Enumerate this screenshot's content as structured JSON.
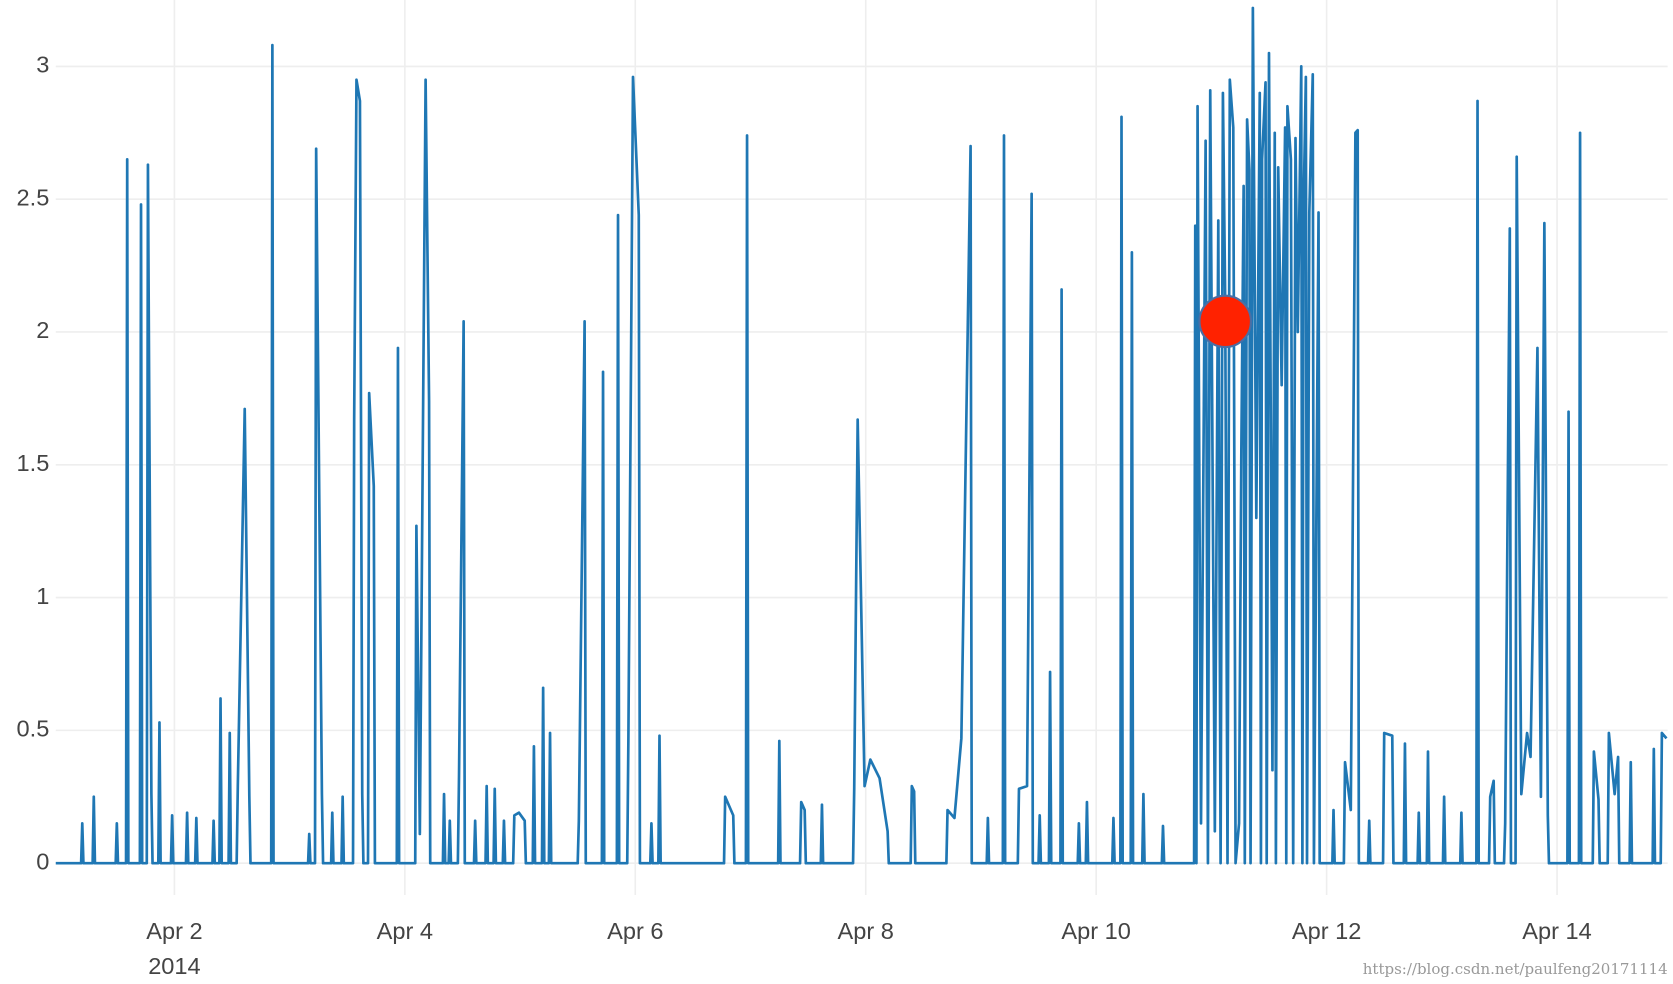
{
  "chart_data": {
    "type": "line",
    "color": "#1f77b4",
    "x": [
      0.97,
      1.19,
      1.2,
      1.21,
      1.29,
      1.3,
      1.31,
      1.49,
      1.5,
      1.51,
      1.58,
      1.59,
      1.6,
      1.7,
      1.71,
      1.72,
      1.76,
      1.77,
      1.8,
      1.81,
      1.86,
      1.87,
      1.88,
      1.97,
      1.98,
      1.99,
      2.1,
      2.11,
      2.12,
      2.18,
      2.19,
      2.2,
      2.33,
      2.34,
      2.35,
      2.39,
      2.4,
      2.41,
      2.47,
      2.48,
      2.49,
      2.54,
      2.55,
      2.61,
      2.65,
      2.66,
      2.84,
      2.85,
      2.86,
      3.16,
      3.17,
      3.18,
      3.22,
      3.23,
      3.28,
      3.29,
      3.36,
      3.37,
      3.38,
      3.45,
      3.46,
      3.47,
      3.55,
      3.56,
      3.58,
      3.61,
      3.63,
      3.64,
      3.68,
      3.69,
      3.73,
      3.74,
      3.93,
      3.94,
      3.95,
      4.09,
      4.1,
      4.13,
      4.18,
      4.21,
      4.22,
      4.33,
      4.34,
      4.35,
      4.38,
      4.39,
      4.4,
      4.46,
      4.47,
      4.51,
      4.52,
      4.6,
      4.61,
      4.62,
      4.7,
      4.71,
      4.72,
      4.77,
      4.78,
      4.79,
      4.85,
      4.86,
      4.87,
      4.94,
      4.95,
      4.99,
      5.04,
      5.05,
      5.11,
      5.12,
      5.13,
      5.19,
      5.2,
      5.21,
      5.25,
      5.26,
      5.27,
      5.5,
      5.51,
      5.56,
      5.57,
      5.71,
      5.72,
      5.73,
      5.84,
      5.85,
      5.86,
      5.93,
      5.94,
      5.98,
      6.03,
      6.04,
      6.13,
      6.14,
      6.15,
      6.2,
      6.21,
      6.22,
      6.77,
      6.78,
      6.85,
      6.86,
      6.96,
      6.97,
      6.98,
      7.24,
      7.25,
      7.26,
      7.43,
      7.44,
      7.47,
      7.48,
      7.61,
      7.62,
      7.63,
      7.89,
      7.9,
      7.93,
      7.99,
      8.04,
      8.12,
      8.19,
      8.2,
      8.39,
      8.4,
      8.42,
      8.43,
      8.7,
      8.71,
      8.77,
      8.83,
      8.91,
      8.92,
      9.05,
      9.06,
      9.07,
      9.19,
      9.2,
      9.21,
      9.32,
      9.33,
      9.4,
      9.44,
      9.45,
      9.5,
      9.51,
      9.52,
      9.59,
      9.6,
      9.61,
      9.69,
      9.7,
      9.71,
      9.84,
      9.85,
      9.86,
      9.91,
      9.92,
      9.93,
      10.14,
      10.15,
      10.16,
      10.21,
      10.22,
      10.23,
      10.3,
      10.31,
      10.32,
      10.4,
      10.41,
      10.42,
      10.57,
      10.58,
      10.59,
      10.85,
      10.86,
      10.87,
      10.88,
      10.91,
      10.95,
      10.97,
      10.99,
      11.03,
      11.06,
      11.08,
      11.1,
      11.12,
      11.14,
      11.16,
      11.19,
      11.21,
      11.24,
      11.26,
      11.28,
      11.29,
      11.31,
      11.33,
      11.34,
      11.36,
      11.39,
      11.42,
      11.43,
      11.44,
      11.47,
      11.48,
      11.5,
      11.53,
      11.55,
      11.56,
      11.58,
      11.61,
      11.64,
      11.65,
      11.66,
      11.69,
      11.71,
      11.73,
      11.75,
      11.78,
      11.79,
      11.8,
      11.82,
      11.83,
      11.85,
      11.88,
      11.89,
      11.93,
      11.94,
      12.05,
      12.06,
      12.07,
      12.15,
      12.16,
      12.21,
      12.25,
      12.27,
      12.28,
      12.36,
      12.37,
      12.38,
      12.49,
      12.5,
      12.57,
      12.58,
      12.67,
      12.68,
      12.69,
      12.79,
      12.8,
      12.81,
      12.87,
      12.88,
      12.89,
      13.01,
      13.02,
      13.03,
      13.16,
      13.17,
      13.18,
      13.3,
      13.31,
      13.32,
      13.41,
      13.42,
      13.45,
      13.46,
      13.54,
      13.55,
      13.59,
      13.6,
      13.64,
      13.65,
      13.69,
      13.74,
      13.77,
      13.83,
      13.86,
      13.89,
      13.92,
      13.93,
      14.09,
      14.1,
      14.11,
      14.19,
      14.2,
      14.21,
      14.31,
      14.32,
      14.36,
      14.37,
      14.44,
      14.45,
      14.5,
      14.53,
      14.54,
      14.63,
      14.64,
      14.65,
      14.83,
      14.84,
      14.85,
      14.9,
      14.91,
      14.95
    ],
    "values": [
      0,
      0,
      0.15,
      0,
      0,
      0.25,
      0,
      0,
      0.15,
      0,
      0,
      2.65,
      0,
      0,
      2.48,
      0,
      0,
      2.63,
      0.26,
      0,
      0,
      0.53,
      0,
      0,
      0.18,
      0,
      0,
      0.19,
      0,
      0,
      0.17,
      0,
      0,
      0.16,
      0,
      0,
      0.62,
      0,
      0,
      0.49,
      0,
      0,
      0.29,
      1.71,
      0.25,
      0,
      0,
      3.08,
      0,
      0,
      0.11,
      0,
      0,
      2.69,
      0.26,
      0,
      0,
      0.19,
      0,
      0,
      0.25,
      0,
      0,
      1.67,
      2.95,
      2.87,
      0.26,
      0,
      0,
      1.77,
      1.42,
      0,
      0,
      1.94,
      0,
      0,
      1.27,
      0.11,
      2.95,
      1.74,
      0,
      0,
      0.26,
      0,
      0,
      0.16,
      0,
      0,
      0.33,
      2.04,
      0,
      0,
      0.16,
      0,
      0,
      0.29,
      0,
      0,
      0.28,
      0,
      0,
      0.16,
      0,
      0,
      0.18,
      0.19,
      0.16,
      0,
      0,
      0.44,
      0,
      0,
      0.66,
      0,
      0,
      0.49,
      0,
      0,
      0.16,
      2.04,
      0,
      0,
      1.85,
      0,
      0,
      2.44,
      0,
      0,
      0.47,
      2.96,
      2.44,
      0,
      0,
      0.15,
      0,
      0,
      0.48,
      0,
      0,
      0.25,
      0.18,
      0,
      0,
      2.74,
      0,
      0,
      0.46,
      0,
      0,
      0.23,
      0.2,
      0,
      0,
      0.22,
      0,
      0,
      0.28,
      1.67,
      0.29,
      0.39,
      0.32,
      0.12,
      0,
      0,
      0.29,
      0.27,
      0,
      0,
      0.2,
      0.17,
      0.47,
      2.7,
      0,
      0,
      0.17,
      0,
      0,
      2.74,
      0,
      0,
      0.28,
      0.29,
      2.52,
      0,
      0,
      0.18,
      0,
      0,
      0.72,
      0,
      0,
      2.16,
      0,
      0,
      0.15,
      0,
      0,
      0.23,
      0,
      0,
      0.17,
      0,
      0,
      2.81,
      0,
      0,
      2.3,
      0,
      0,
      0.26,
      0,
      0,
      0.14,
      0,
      0,
      2.4,
      0,
      2.85,
      0.15,
      2.72,
      0,
      2.91,
      0.12,
      2.42,
      0,
      2.9,
      2.12,
      0,
      2.95,
      2.77,
      0,
      0.15,
      1.55,
      2.55,
      0,
      2.8,
      2.61,
      0,
      3.22,
      1.3,
      2.9,
      0,
      2.65,
      2.94,
      0,
      3.05,
      0.35,
      2.75,
      0,
      2.62,
      1.8,
      2.77,
      0,
      2.85,
      2.65,
      0,
      2.73,
      2.0,
      3.0,
      0,
      2.46,
      2.96,
      0,
      2.45,
      2.97,
      0,
      2.45,
      0,
      0,
      0.2,
      0,
      0,
      0.38,
      0.2,
      2.75,
      2.76,
      0,
      0,
      0.16,
      0,
      0,
      0.49,
      0.48,
      0,
      0,
      0.45,
      0,
      0,
      0.19,
      0,
      0,
      0.42,
      0,
      0,
      0.25,
      0,
      0,
      0.19,
      0,
      0,
      2.87,
      0,
      0,
      0.25,
      0.31,
      0,
      0,
      0.15,
      2.39,
      0,
      0,
      2.66,
      0.26,
      0.49,
      0.4,
      1.94,
      0.25,
      2.41,
      0.18,
      0,
      0,
      1.7,
      0,
      0,
      2.75,
      0,
      0,
      0.42,
      0.24,
      0,
      0,
      0.49,
      0.26,
      0.4,
      0,
      0,
      0.38,
      0,
      0,
      0.43,
      0,
      0,
      0.49,
      0.47
    ],
    "xlim": [
      0.97,
      14.96
    ],
    "xticks": [
      {
        "value": 2,
        "label": "Apr 2"
      },
      {
        "value": 4,
        "label": "Apr 4"
      },
      {
        "value": 6,
        "label": "Apr 6"
      },
      {
        "value": 8,
        "label": "Apr 8"
      },
      {
        "value": 10,
        "label": "Apr 10"
      },
      {
        "value": 12,
        "label": "Apr 12"
      },
      {
        "value": 14,
        "label": "Apr 14"
      }
    ],
    "x_year_label": "2014",
    "ylim": [
      -0.12,
      3.25
    ],
    "yticks": [
      0,
      0.5,
      1,
      1.5,
      2,
      2.5,
      3
    ],
    "grid": true,
    "highlight": {
      "x": 11.12,
      "y": 2.04,
      "color": "#ff2200"
    },
    "watermark": "https://blog.csdn.net/paulfeng20171114"
  }
}
